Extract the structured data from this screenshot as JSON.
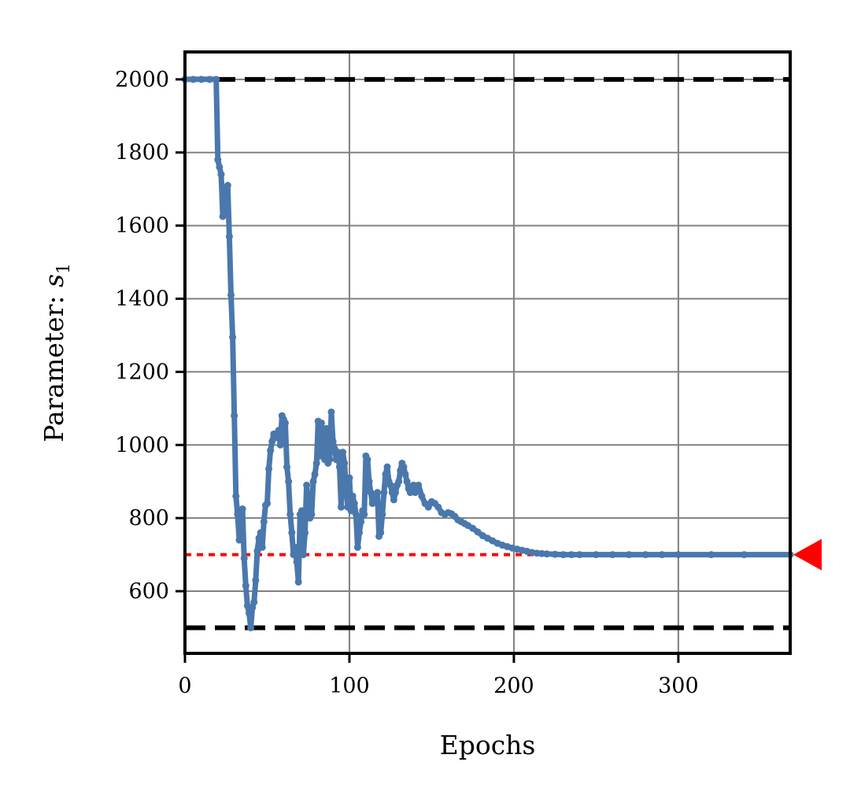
{
  "chart_data": {
    "type": "line",
    "xlabel": "Epochs",
    "ylabel": "Parameter: ",
    "ylabel_symbol": "s",
    "ylabel_subscript": "1",
    "xlim": [
      0,
      368
    ],
    "ylim": [
      430,
      2075
    ],
    "xticks": [
      0,
      100,
      200,
      300
    ],
    "yticks": [
      600,
      800,
      1000,
      1200,
      1400,
      1600,
      1800,
      2000
    ],
    "grid": true,
    "colors": {
      "series": "#4a78ad",
      "bounds": "#000000",
      "target": "#ff0000",
      "grid": "#808080"
    },
    "bounds": {
      "lower": 500,
      "upper": 2000
    },
    "target": {
      "value": 700
    },
    "series": [
      {
        "x": [
          0,
          5,
          10,
          15,
          19,
          20,
          21,
          22,
          23,
          24,
          25,
          26,
          27,
          28,
          29,
          30,
          31,
          32,
          33,
          34,
          35,
          36,
          37,
          38,
          39,
          40,
          41,
          42,
          43,
          44,
          45,
          46,
          47,
          48,
          49,
          50,
          51,
          52,
          53,
          54,
          55,
          56,
          57,
          58,
          59,
          60,
          61,
          62,
          63,
          64,
          65,
          66,
          67,
          68,
          69,
          70,
          71,
          72,
          73,
          74,
          75,
          76,
          77,
          78,
          79,
          80,
          81,
          82,
          83,
          84,
          85,
          86,
          87,
          88,
          89,
          90,
          91,
          92,
          93,
          94,
          95,
          96,
          97,
          98,
          99,
          100,
          101,
          102,
          103,
          104,
          105,
          106,
          107,
          108,
          109,
          110,
          111,
          112,
          113,
          114,
          115,
          116,
          117,
          118,
          119,
          120,
          121,
          122,
          123,
          124,
          125,
          126,
          127,
          128,
          129,
          130,
          131,
          132,
          133,
          134,
          135,
          136,
          137,
          138,
          139,
          140,
          142,
          144,
          146,
          148,
          150,
          152,
          154,
          156,
          158,
          160,
          162,
          164,
          166,
          168,
          170,
          172,
          175,
          178,
          181,
          184,
          187,
          190,
          193,
          196,
          199,
          202,
          205,
          208,
          211,
          214,
          217,
          220,
          225,
          230,
          235,
          240,
          250,
          260,
          270,
          280,
          290,
          300,
          320,
          340,
          368
        ],
        "y": [
          2000,
          2000,
          2000,
          2000,
          2000,
          1780,
          1760,
          1740,
          1625,
          1700,
          1640,
          1710,
          1570,
          1410,
          1295,
          1080,
          860,
          810,
          740,
          800,
          825,
          690,
          615,
          560,
          540,
          500,
          555,
          570,
          630,
          710,
          745,
          760,
          720,
          790,
          835,
          840,
          935,
          985,
          1010,
          1030,
          1030,
          1020,
          1040,
          1000,
          1080,
          1070,
          1060,
          940,
          900,
          810,
          760,
          700,
          720,
          680,
          625,
          810,
          820,
          700,
          760,
          890,
          840,
          800,
          810,
          900,
          920,
          950,
          1065,
          970,
          1060,
          1000,
          960,
          1045,
          950,
          960,
          1090,
          1010,
          990,
          960,
          980,
          940,
          830,
          980,
          950,
          880,
          830,
          910,
          820,
          860,
          840,
          810,
          720,
          760,
          790,
          820,
          810,
          970,
          960,
          900,
          870,
          840,
          860,
          850,
          870,
          750,
          760,
          810,
          870,
          920,
          940,
          900,
          890,
          870,
          850,
          870,
          890,
          900,
          930,
          950,
          940,
          920,
          900,
          880,
          870,
          880,
          890,
          870,
          890,
          860,
          840,
          830,
          845,
          840,
          830,
          815,
          810,
          815,
          812,
          805,
          795,
          790,
          785,
          780,
          772,
          762,
          752,
          745,
          738,
          731,
          726,
          722,
          718,
          715,
          712,
          709,
          706,
          704,
          703,
          702,
          701,
          700,
          700,
          700,
          700,
          700,
          700,
          700,
          700,
          700,
          700,
          700,
          700
        ]
      }
    ]
  }
}
